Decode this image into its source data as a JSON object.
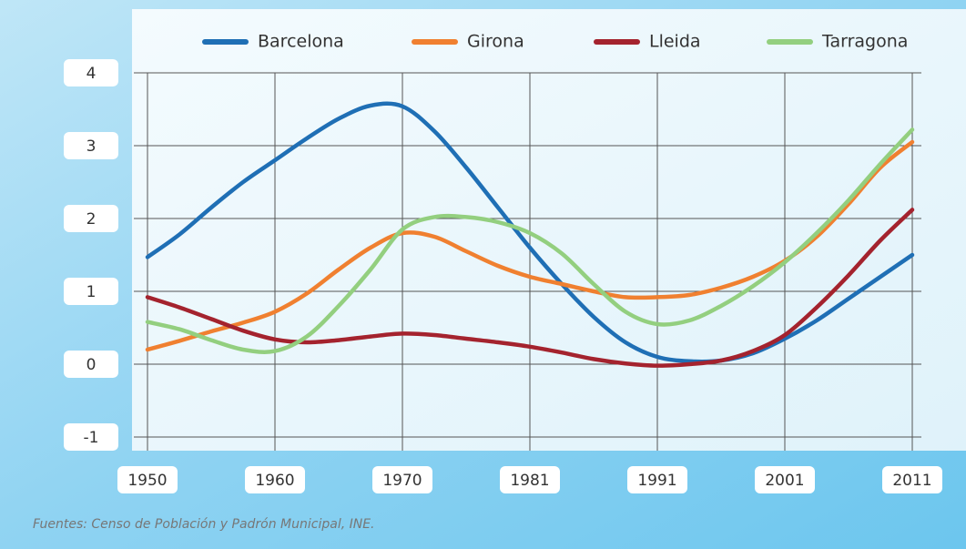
{
  "chart_data": {
    "type": "line",
    "categories": [
      "1950",
      null,
      null,
      null,
      "1960",
      null,
      null,
      null,
      "1970",
      null,
      null,
      null,
      "1981",
      null,
      null,
      null,
      "1991",
      null,
      null,
      null,
      "2001",
      null,
      null,
      null,
      "2011"
    ],
    "series": [
      {
        "name": "Barcelona",
        "color": "#1f6fb5",
        "values": [
          1.47,
          1.78,
          2.15,
          2.5,
          2.8,
          3.1,
          3.37,
          3.55,
          3.54,
          3.2,
          2.7,
          2.15,
          1.6,
          1.1,
          0.65,
          0.3,
          0.1,
          0.04,
          0.05,
          0.15,
          0.35,
          0.6,
          0.9,
          1.2,
          1.5
        ]
      },
      {
        "name": "Girona",
        "color": "#f08030",
        "values": [
          0.2,
          0.32,
          0.45,
          0.57,
          0.72,
          0.97,
          1.3,
          1.6,
          1.8,
          1.75,
          1.55,
          1.35,
          1.2,
          1.1,
          1.0,
          0.92,
          0.92,
          0.95,
          1.05,
          1.2,
          1.42,
          1.75,
          2.2,
          2.7,
          3.05
        ]
      },
      {
        "name": "Lleida",
        "color": "#a4232e",
        "values": [
          0.92,
          0.78,
          0.62,
          0.46,
          0.34,
          0.3,
          0.33,
          0.38,
          0.42,
          0.4,
          0.35,
          0.3,
          0.24,
          0.16,
          0.07,
          0.01,
          -0.02,
          0.0,
          0.05,
          0.18,
          0.4,
          0.78,
          1.22,
          1.7,
          2.12
        ]
      },
      {
        "name": "Tarragona",
        "color": "#93cf7f",
        "values": [
          0.58,
          0.48,
          0.33,
          0.2,
          0.18,
          0.38,
          0.8,
          1.3,
          1.85,
          2.02,
          2.02,
          1.95,
          1.8,
          1.52,
          1.1,
          0.72,
          0.55,
          0.6,
          0.8,
          1.07,
          1.4,
          1.8,
          2.25,
          2.75,
          3.22
        ]
      }
    ],
    "ylim": [
      -1,
      4
    ],
    "yticks": [
      -1,
      0,
      1,
      2,
      3,
      4
    ],
    "grid": true,
    "note": "Fuentes: Censo de Población y Padrón Municipal, INE."
  }
}
